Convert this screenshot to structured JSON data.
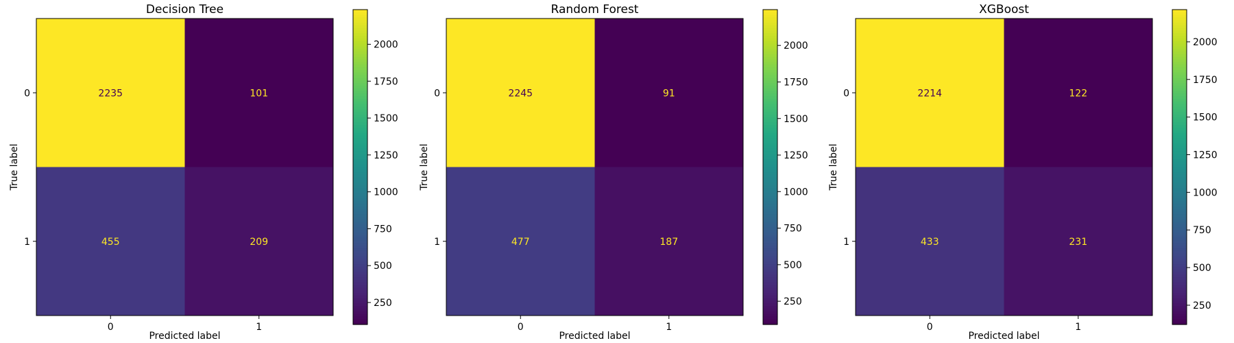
{
  "chart_data": [
    {
      "type": "heatmap",
      "title": "Decision Tree",
      "xlabel": "Predicted label",
      "ylabel": "True label",
      "x_ticks": [
        "0",
        "1"
      ],
      "y_ticks": [
        "0",
        "1"
      ],
      "matrix": [
        [
          2235,
          101
        ],
        [
          455,
          209
        ]
      ],
      "colormap": "viridis",
      "colorbar_ticks": [
        250,
        500,
        750,
        1000,
        1250,
        1500,
        1750,
        2000
      ],
      "colorbar_range": [
        101,
        2235
      ]
    },
    {
      "type": "heatmap",
      "title": "Random Forest",
      "xlabel": "Predicted label",
      "ylabel": "True label",
      "x_ticks": [
        "0",
        "1"
      ],
      "y_ticks": [
        "0",
        "1"
      ],
      "matrix": [
        [
          2245,
          91
        ],
        [
          477,
          187
        ]
      ],
      "colormap": "viridis",
      "colorbar_ticks": [
        250,
        500,
        750,
        1000,
        1250,
        1500,
        1750,
        2000
      ],
      "colorbar_range": [
        91,
        2245
      ]
    },
    {
      "type": "heatmap",
      "title": "XGBoost",
      "xlabel": "Predicted label",
      "ylabel": "True label",
      "x_ticks": [
        "0",
        "1"
      ],
      "y_ticks": [
        "0",
        "1"
      ],
      "matrix": [
        [
          2214,
          122
        ],
        [
          433,
          231
        ]
      ],
      "colormap": "viridis",
      "colorbar_ticks": [
        250,
        500,
        750,
        1000,
        1250,
        1500,
        1750,
        2000
      ],
      "colorbar_range": [
        122,
        2214
      ]
    }
  ],
  "colors": {
    "text_on_dark": "#fde725",
    "text_on_light": "#440154",
    "axis": "#000000",
    "background": "#ffffff"
  }
}
